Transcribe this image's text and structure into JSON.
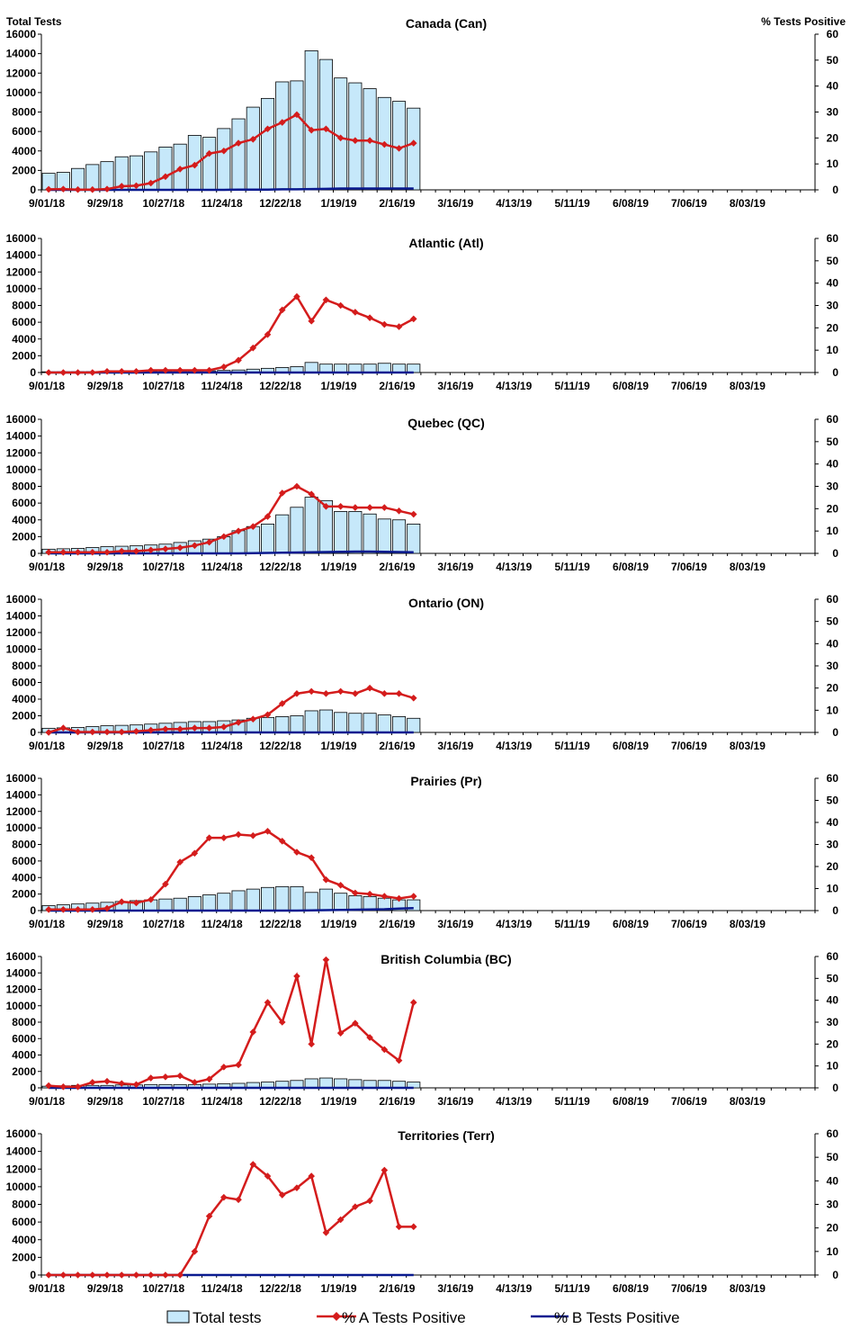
{
  "page": {
    "left_axis_title": "Total Tests",
    "right_axis_title": "% Tests Positive"
  },
  "legend": [
    {
      "key": "total",
      "label": "Total tests"
    },
    {
      "key": "a",
      "label": "% A Tests Positive"
    },
    {
      "key": "b",
      "label": "% B Tests Positive"
    }
  ],
  "colors": {
    "bar_fill": "#c6e8fa",
    "bar_stroke": "#000000",
    "a_line": "#d41c1c",
    "b_line": "#0a1a8f"
  },
  "chart_data": [
    {
      "type": "bar+line",
      "title": "Canada (Can)",
      "x_tick_labels": [
        "9/01/18",
        "9/29/18",
        "10/27/18",
        "11/24/18",
        "12/22/18",
        "1/19/19",
        "2/16/19",
        "3/16/19",
        "4/13/19",
        "5/11/19",
        "6/08/19",
        "7/06/19",
        "8/03/19"
      ],
      "y_left": {
        "min": 0,
        "max": 16000,
        "ticks": [
          "0",
          "2000",
          "4000",
          "6000",
          "8000",
          "10000",
          "12000",
          "14000",
          "16000"
        ]
      },
      "y_right": {
        "min": 0,
        "max": 60,
        "ticks": [
          "0",
          "10",
          "20",
          "30",
          "40",
          "50",
          "60"
        ]
      },
      "weeks": 53,
      "total_tests": [
        1700,
        1800,
        2200,
        2600,
        2900,
        3400,
        3500,
        3900,
        4400,
        4700,
        5600,
        5400,
        6300,
        7300,
        8500,
        9400,
        11100,
        11200,
        14300,
        13400,
        11500,
        11000,
        10400,
        9500,
        9100,
        8400
      ],
      "pct_a": [
        0.2,
        0.3,
        0.1,
        0.1,
        0.3,
        1.4,
        1.6,
        2.6,
        5.1,
        8.0,
        9.5,
        14.0,
        15.0,
        18.0,
        19.5,
        23.5,
        26.0,
        29.0,
        23.0,
        23.5,
        20.0,
        19.0,
        19.0,
        17.5,
        16.0,
        18.0
      ],
      "pct_b": [
        0,
        0,
        0,
        0,
        0,
        0,
        0,
        0,
        0,
        0,
        0,
        0,
        0,
        0.1,
        0.1,
        0.1,
        0.2,
        0.2,
        0.3,
        0.4,
        0.5,
        0.5,
        0.5,
        0.5,
        0.5,
        0.5
      ]
    },
    {
      "type": "bar+line",
      "title": "Atlantic (Atl)",
      "x_tick_labels": [
        "9/01/18",
        "9/29/18",
        "10/27/18",
        "11/24/18",
        "12/22/18",
        "1/19/19",
        "2/16/19",
        "3/16/19",
        "4/13/19",
        "5/11/19",
        "6/08/19",
        "7/06/19",
        "8/03/19"
      ],
      "y_left": {
        "min": 0,
        "max": 16000,
        "ticks": [
          "0",
          "2000",
          "4000",
          "6000",
          "8000",
          "10000",
          "12000",
          "14000",
          "16000"
        ]
      },
      "y_right": {
        "min": 0,
        "max": 60,
        "ticks": [
          "0",
          "10",
          "20",
          "30",
          "40",
          "50",
          "60"
        ]
      },
      "weeks": 53,
      "total_tests": [
        80,
        90,
        100,
        110,
        120,
        130,
        140,
        150,
        160,
        170,
        180,
        200,
        250,
        300,
        400,
        500,
        600,
        700,
        1200,
        1000,
        1000,
        1000,
        1000,
        1100,
        1000,
        1000
      ],
      "pct_a": [
        0,
        0,
        0,
        0,
        0.5,
        0.5,
        0.5,
        1,
        1,
        1,
        1,
        1,
        2.5,
        5.5,
        11,
        17,
        28,
        34,
        23,
        32.5,
        30,
        27,
        24.5,
        21.5,
        20.5,
        24
      ],
      "pct_b": [
        0,
        0,
        0,
        0,
        0,
        0,
        0,
        0,
        0,
        0,
        0,
        0,
        0,
        0,
        0,
        0,
        0,
        0,
        0,
        0,
        0,
        0,
        0,
        0,
        0,
        0
      ]
    },
    {
      "type": "bar+line",
      "title": "Quebec (QC)",
      "x_tick_labels": [
        "9/01/18",
        "9/29/18",
        "10/27/18",
        "11/24/18",
        "12/22/18",
        "1/19/19",
        "2/16/19",
        "3/16/19",
        "4/13/19",
        "5/11/19",
        "6/08/19",
        "7/06/19",
        "8/03/19"
      ],
      "y_left": {
        "min": 0,
        "max": 16000,
        "ticks": [
          "0",
          "2000",
          "4000",
          "6000",
          "8000",
          "10000",
          "12000",
          "14000",
          "16000"
        ]
      },
      "y_right": {
        "min": 0,
        "max": 60,
        "ticks": [
          "0",
          "10",
          "20",
          "30",
          "40",
          "50",
          "60"
        ]
      },
      "weeks": 53,
      "total_tests": [
        500,
        550,
        600,
        700,
        800,
        850,
        900,
        1000,
        1100,
        1300,
        1500,
        1700,
        2000,
        2700,
        3200,
        3500,
        4600,
        5500,
        6700,
        6300,
        5000,
        5000,
        4700,
        4100,
        4000,
        3500
      ],
      "pct_a": [
        0.5,
        0.5,
        0.5,
        0.5,
        0.5,
        1,
        1,
        1.5,
        2,
        2.5,
        3.5,
        5,
        7.5,
        10,
        12,
        16.5,
        27,
        30,
        26.5,
        21,
        21,
        20.5,
        20.5,
        20.5,
        19,
        17.5
      ],
      "pct_b": [
        0,
        0,
        0,
        0,
        0,
        0,
        0,
        0,
        0,
        0,
        0,
        0,
        0,
        0,
        0.1,
        0.2,
        0.3,
        0.4,
        0.5,
        0.6,
        0.7,
        0.8,
        0.8,
        0.7,
        0.6,
        0.5
      ]
    },
    {
      "type": "bar+line",
      "title": "Ontario (ON)",
      "x_tick_labels": [
        "9/01/18",
        "9/29/18",
        "10/27/18",
        "11/24/18",
        "12/22/18",
        "1/19/19",
        "2/16/19",
        "3/16/19",
        "4/13/19",
        "5/11/19",
        "6/08/19",
        "7/06/19",
        "8/03/19"
      ],
      "y_left": {
        "min": 0,
        "max": 16000,
        "ticks": [
          "0",
          "2000",
          "4000",
          "6000",
          "8000",
          "10000",
          "12000",
          "14000",
          "16000"
        ]
      },
      "y_right": {
        "min": 0,
        "max": 60,
        "ticks": [
          "0",
          "10",
          "20",
          "30",
          "40",
          "50",
          "60"
        ]
      },
      "weeks": 53,
      "total_tests": [
        500,
        550,
        600,
        700,
        800,
        850,
        900,
        1000,
        1100,
        1200,
        1300,
        1300,
        1400,
        1500,
        1700,
        1800,
        1900,
        2000,
        2600,
        2700,
        2400,
        2300,
        2300,
        2100,
        1900,
        1700
      ],
      "pct_a": [
        0,
        2,
        0.2,
        0.2,
        0.2,
        0.2,
        0.5,
        1,
        1.5,
        1.5,
        2,
        2,
        2.5,
        4.5,
        6,
        8,
        13,
        17.5,
        18.5,
        17.5,
        18.5,
        17.5,
        20,
        17.5,
        17.5,
        15.5
      ],
      "pct_b": [
        0,
        0,
        0,
        0,
        0,
        0,
        0,
        0,
        0,
        0,
        0,
        0,
        0,
        0,
        0,
        0,
        0,
        0,
        0,
        0,
        0,
        0,
        0,
        0,
        0,
        0
      ]
    },
    {
      "type": "bar+line",
      "title": "Prairies (Pr)",
      "x_tick_labels": [
        "9/01/18",
        "9/29/18",
        "10/27/18",
        "11/24/18",
        "12/22/18",
        "1/19/19",
        "2/16/19",
        "3/16/19",
        "4/13/19",
        "5/11/19",
        "6/08/19",
        "7/06/19",
        "8/03/19"
      ],
      "y_left": {
        "min": 0,
        "max": 16000,
        "ticks": [
          "0",
          "2000",
          "4000",
          "6000",
          "8000",
          "10000",
          "12000",
          "14000",
          "16000"
        ]
      },
      "y_right": {
        "min": 0,
        "max": 60,
        "ticks": [
          "0",
          "10",
          "20",
          "30",
          "40",
          "50",
          "60"
        ]
      },
      "weeks": 53,
      "total_tests": [
        600,
        700,
        800,
        900,
        1000,
        1100,
        1200,
        1300,
        1400,
        1500,
        1700,
        1900,
        2100,
        2400,
        2600,
        2800,
        2900,
        2900,
        2200,
        2600,
        2100,
        1800,
        1700,
        1500,
        1300,
        1300
      ],
      "pct_a": [
        0.5,
        0.5,
        0.5,
        0.5,
        1,
        4,
        3.5,
        5,
        12,
        22,
        26,
        33,
        33,
        34.5,
        34,
        36,
        31.5,
        26.5,
        24,
        14,
        11.5,
        8,
        7.5,
        6.5,
        5.5,
        6.5
      ],
      "pct_b": [
        0,
        0,
        0,
        0,
        0,
        0,
        0,
        0,
        0,
        0,
        0,
        0,
        0,
        0,
        0,
        0,
        0,
        0,
        0.1,
        0.2,
        0.3,
        0.4,
        0.5,
        0.6,
        0.9,
        1.1
      ]
    },
    {
      "type": "bar+line",
      "title": "British Columbia (BC)",
      "x_tick_labels": [
        "9/01/18",
        "9/29/18",
        "10/27/18",
        "11/24/18",
        "12/22/18",
        "1/19/19",
        "2/16/19",
        "3/16/19",
        "4/13/19",
        "5/11/19",
        "6/08/19",
        "7/06/19",
        "8/03/19"
      ],
      "y_left": {
        "min": 0,
        "max": 16000,
        "ticks": [
          "0",
          "2000",
          "4000",
          "6000",
          "8000",
          "10000",
          "12000",
          "14000",
          "16000"
        ]
      },
      "y_right": {
        "min": 0,
        "max": 60,
        "ticks": [
          "0",
          "10",
          "20",
          "30",
          "40",
          "50",
          "60"
        ]
      },
      "weeks": 53,
      "total_tests": [
        200,
        250,
        300,
        300,
        300,
        350,
        350,
        400,
        400,
        400,
        400,
        450,
        500,
        550,
        650,
        700,
        800,
        900,
        1100,
        1200,
        1100,
        1000,
        900,
        900,
        800,
        700
      ],
      "pct_a": [
        1,
        0.5,
        0.5,
        2.5,
        3,
        2,
        1.5,
        4.5,
        5,
        5.5,
        2.5,
        4,
        9.5,
        10.5,
        25.5,
        39,
        30,
        51,
        20,
        58.5,
        25,
        29.5,
        23,
        17.5,
        12.5,
        39
      ],
      "pct_b": [
        0,
        0,
        0,
        0,
        0,
        0,
        0,
        0,
        0,
        0,
        0,
        0,
        0,
        0,
        0,
        0,
        0,
        0,
        0,
        0,
        0,
        0,
        0,
        0,
        0,
        0
      ]
    },
    {
      "type": "bar+line",
      "title": "Territories (Terr)",
      "x_tick_labels": [
        "9/01/18",
        "9/29/18",
        "10/27/18",
        "11/24/18",
        "12/22/18",
        "1/19/19",
        "2/16/19",
        "3/16/19",
        "4/13/19",
        "5/11/19",
        "6/08/19",
        "7/06/19",
        "8/03/19"
      ],
      "y_left": {
        "min": 0,
        "max": 16000,
        "ticks": [
          "0",
          "2000",
          "4000",
          "6000",
          "8000",
          "10000",
          "12000",
          "14000",
          "16000"
        ]
      },
      "y_right": {
        "min": 0,
        "max": 60,
        "ticks": [
          "0",
          "10",
          "20",
          "30",
          "40",
          "50",
          "60"
        ]
      },
      "weeks": 53,
      "total_tests": [
        0,
        0,
        0,
        0,
        0,
        0,
        0,
        0,
        0,
        0,
        0,
        0,
        0,
        0,
        0,
        0,
        0,
        0,
        0,
        0,
        0,
        0,
        0,
        0,
        0,
        0
      ],
      "pct_a": [
        0,
        0,
        0,
        0,
        0,
        0,
        0,
        0,
        0,
        0,
        10,
        25,
        33,
        32,
        47,
        42,
        34,
        37,
        42,
        18,
        23.5,
        29,
        31.5,
        44.5,
        20.5,
        20.5
      ],
      "pct_b": [
        0,
        0,
        0,
        0,
        0,
        0,
        0,
        0,
        0,
        0,
        0,
        0,
        0,
        0,
        0,
        0,
        0,
        0,
        0,
        0,
        0,
        0,
        0,
        0,
        0,
        0
      ]
    }
  ]
}
